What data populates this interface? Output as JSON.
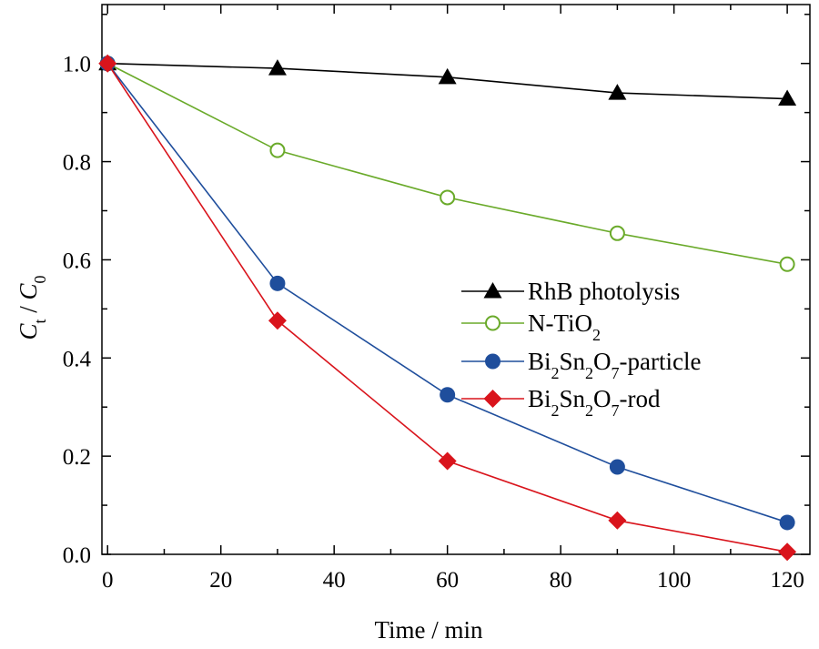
{
  "chart_data": {
    "type": "line",
    "xlabel": "Time / min",
    "ylabel": {
      "main": "C",
      "sub_t": "t",
      "slash": " / ",
      "main2": "C",
      "sub_0": "0"
    },
    "xlim": [
      -1,
      124
    ],
    "ylim": [
      0,
      1.12
    ],
    "xticks": [
      0,
      20,
      40,
      60,
      80,
      100,
      120
    ],
    "yticks": [
      0.0,
      0.2,
      0.4,
      0.6,
      0.8,
      1.0
    ],
    "xtick_labels": [
      "0",
      "20",
      "40",
      "60",
      "80",
      "100",
      "120"
    ],
    "ytick_labels": [
      "0.0",
      "0.2",
      "0.4",
      "0.6",
      "0.8",
      "1.0"
    ],
    "grid": false,
    "legend_position": "center-right",
    "series": [
      {
        "name": "RhB photolysis",
        "legend": {
          "base": "RhB photolysis"
        },
        "color": "#000000",
        "marker": "triangle",
        "x": [
          0,
          30,
          60,
          90,
          120
        ],
        "y": [
          1.0,
          0.99,
          0.972,
          0.94,
          0.928
        ]
      },
      {
        "name": "N-TiO2",
        "legend": {
          "base": "N-TiO",
          "sub": "2"
        },
        "color": "#6aaa2a",
        "marker": "open-circle",
        "x": [
          0,
          30,
          60,
          90,
          120
        ],
        "y": [
          1.0,
          0.823,
          0.727,
          0.654,
          0.591
        ]
      },
      {
        "name": "Bi2Sn2O7-particle",
        "legend": {
          "parts": [
            "Bi",
            "2",
            "Sn",
            "2",
            "O",
            "7",
            "-particle"
          ]
        },
        "color": "#1f4e9c",
        "marker": "circle",
        "x": [
          0,
          30,
          60,
          90,
          120
        ],
        "y": [
          1.0,
          0.552,
          0.325,
          0.178,
          0.065
        ]
      },
      {
        "name": "Bi2Sn2O7-rod",
        "legend": {
          "parts": [
            "Bi",
            "2",
            "Sn",
            "2",
            "O",
            "7",
            "-rod"
          ]
        },
        "color": "#d9141c",
        "marker": "diamond",
        "x": [
          0,
          30,
          60,
          90,
          120
        ],
        "y": [
          1.0,
          0.476,
          0.19,
          0.069,
          0.005
        ]
      }
    ]
  }
}
